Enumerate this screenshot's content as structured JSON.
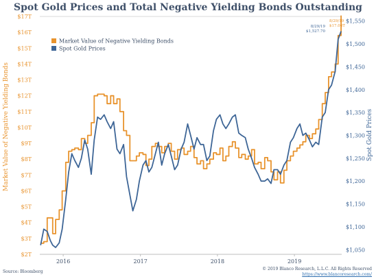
{
  "header": {
    "title": "Spot Gold Prices and Total Negative Yielding Bonds Outstanding"
  },
  "footer": {
    "source": "Source: Bloomberg",
    "copyright": "© 2019 Blanco Research, L.L.C. All Rights Reserved",
    "website": "https://www.blancoresearch.com/"
  },
  "colors": {
    "bonds": "#e8932d",
    "gold": "#3d6596",
    "title": "#3f5069"
  },
  "chart_data": {
    "type": "line",
    "title": "Spot Gold Prices and Total Negative Yielding Bonds Outstanding",
    "legend_position": "top-left",
    "grid": false,
    "x_ticks": [
      "2016",
      "2017",
      "2018",
      "2019"
    ],
    "x_range": [
      "2015-10-01",
      "2019-09-01"
    ],
    "y_left": {
      "label": "Market Value of Negative Yielding Bonds",
      "ticks": [
        "$2T",
        "$3T",
        "$4T",
        "$5T",
        "$6T",
        "$7T",
        "$8T",
        "$9T",
        "$10T",
        "$11T",
        "$12T",
        "$13T",
        "$14T",
        "$15T",
        "$16T",
        "$17T"
      ],
      "range": [
        2,
        17
      ]
    },
    "y_right": {
      "label": "Spot Gold Prices",
      "ticks": [
        "$1,050",
        "$1,100",
        "$1,150",
        "$1,200",
        "$1,250",
        "$1,300",
        "$1,350",
        "$1,400",
        "$1,450",
        "$1,500",
        "$1,550"
      ],
      "range": [
        1040,
        1560
      ]
    },
    "annotations": [
      {
        "text": "8/29/19",
        "series": "bonds"
      },
      {
        "text": "$17.06T",
        "series": "bonds"
      },
      {
        "text": "8/29/19",
        "series": "gold"
      },
      {
        "text": "$1,527.70",
        "series": "gold"
      }
    ],
    "series": [
      {
        "name": "Market Value of Negative Yielding Bonds",
        "axis": "left",
        "x": [
          "2015-10-05",
          "2015-10-20",
          "2015-11-05",
          "2015-11-20",
          "2015-12-01",
          "2015-12-15",
          "2016-01-01",
          "2016-01-15",
          "2016-02-01",
          "2016-02-15",
          "2016-03-01",
          "2016-03-15",
          "2016-04-01",
          "2016-04-15",
          "2016-05-01",
          "2016-05-15",
          "2016-06-01",
          "2016-06-15",
          "2016-07-01",
          "2016-07-15",
          "2016-08-01",
          "2016-08-15",
          "2016-09-01",
          "2016-09-15",
          "2016-10-01",
          "2016-10-15",
          "2016-11-01",
          "2016-11-15",
          "2016-12-01",
          "2016-12-15",
          "2017-01-01",
          "2017-01-15",
          "2017-02-01",
          "2017-02-15",
          "2017-03-01",
          "2017-03-15",
          "2017-04-01",
          "2017-04-15",
          "2017-05-01",
          "2017-05-15",
          "2017-06-01",
          "2017-06-15",
          "2017-07-01",
          "2017-07-15",
          "2017-08-01",
          "2017-08-15",
          "2017-09-01",
          "2017-09-15",
          "2017-10-01",
          "2017-10-15",
          "2017-11-01",
          "2017-11-15",
          "2017-12-01",
          "2017-12-15",
          "2018-01-01",
          "2018-01-15",
          "2018-02-01",
          "2018-02-15",
          "2018-03-01",
          "2018-03-15",
          "2018-04-01",
          "2018-04-15",
          "2018-05-01",
          "2018-05-15",
          "2018-06-01",
          "2018-06-15",
          "2018-07-01",
          "2018-07-15",
          "2018-08-01",
          "2018-08-15",
          "2018-09-01",
          "2018-09-15",
          "2018-10-01",
          "2018-10-15",
          "2018-11-01",
          "2018-11-15",
          "2018-12-01",
          "2018-12-15",
          "2019-01-01",
          "2019-01-15",
          "2019-02-01",
          "2019-02-15",
          "2019-03-01",
          "2019-03-15",
          "2019-04-01",
          "2019-04-15",
          "2019-05-01",
          "2019-05-15",
          "2019-06-01",
          "2019-06-15",
          "2019-07-01",
          "2019-07-15",
          "2019-08-01",
          "2019-08-15",
          "2019-08-29"
        ],
        "values": [
          2.7,
          2.8,
          4.3,
          4.3,
          3.3,
          4.2,
          4.8,
          6.0,
          7.8,
          8.5,
          8.6,
          8.7,
          8.6,
          9.3,
          9.0,
          9.5,
          10.3,
          12.0,
          12.1,
          12.1,
          12.0,
          11.5,
          12.0,
          11.5,
          11.8,
          11.0,
          9.8,
          9.5,
          7.9,
          7.9,
          8.2,
          8.4,
          8.3,
          7.6,
          8.0,
          8.8,
          9.0,
          8.8,
          8.4,
          8.8,
          9.0,
          8.5,
          8.0,
          8.6,
          8.7,
          8.3,
          8.5,
          8.8,
          8.1,
          7.7,
          7.9,
          7.4,
          7.7,
          8.0,
          8.4,
          8.3,
          8.7,
          7.9,
          8.2,
          8.8,
          9.1,
          8.7,
          8.1,
          8.3,
          8.0,
          8.2,
          8.6,
          7.7,
          7.8,
          7.4,
          8.1,
          7.9,
          7.2,
          6.7,
          7.2,
          6.5,
          7.3,
          7.9,
          8.2,
          8.5,
          8.7,
          8.9,
          9.1,
          9.5,
          9.3,
          9.6,
          9.9,
          10.5,
          11.5,
          12.2,
          13.2,
          13.5,
          14.0,
          15.8,
          17.06
        ]
      },
      {
        "name": "Spot Gold Prices",
        "axis": "right",
        "x": [
          "2015-10-05",
          "2015-10-20",
          "2015-11-05",
          "2015-11-20",
          "2015-12-01",
          "2015-12-15",
          "2016-01-01",
          "2016-01-15",
          "2016-02-01",
          "2016-02-15",
          "2016-03-01",
          "2016-03-15",
          "2016-04-01",
          "2016-04-15",
          "2016-05-01",
          "2016-05-15",
          "2016-06-01",
          "2016-06-15",
          "2016-07-01",
          "2016-07-15",
          "2016-08-01",
          "2016-08-15",
          "2016-09-01",
          "2016-09-15",
          "2016-10-01",
          "2016-10-15",
          "2016-11-01",
          "2016-11-15",
          "2016-12-01",
          "2016-12-15",
          "2017-01-01",
          "2017-01-15",
          "2017-02-01",
          "2017-02-15",
          "2017-03-01",
          "2017-03-15",
          "2017-04-01",
          "2017-04-15",
          "2017-05-01",
          "2017-05-15",
          "2017-06-01",
          "2017-06-15",
          "2017-07-01",
          "2017-07-15",
          "2017-08-01",
          "2017-08-15",
          "2017-09-01",
          "2017-09-15",
          "2017-10-01",
          "2017-10-15",
          "2017-11-01",
          "2017-11-15",
          "2017-12-01",
          "2017-12-15",
          "2018-01-01",
          "2018-01-15",
          "2018-02-01",
          "2018-02-15",
          "2018-03-01",
          "2018-03-15",
          "2018-04-01",
          "2018-04-15",
          "2018-05-01",
          "2018-05-15",
          "2018-06-01",
          "2018-06-15",
          "2018-07-01",
          "2018-07-15",
          "2018-08-01",
          "2018-08-15",
          "2018-09-01",
          "2018-09-15",
          "2018-10-01",
          "2018-10-15",
          "2018-11-01",
          "2018-11-15",
          "2018-12-01",
          "2018-12-15",
          "2019-01-01",
          "2019-01-15",
          "2019-02-01",
          "2019-02-15",
          "2019-03-01",
          "2019-03-15",
          "2019-04-01",
          "2019-04-15",
          "2019-05-01",
          "2019-05-15",
          "2019-06-01",
          "2019-06-15",
          "2019-07-01",
          "2019-07-15",
          "2019-08-01",
          "2019-08-15",
          "2019-08-29"
        ],
        "values": [
          1060,
          1095,
          1090,
          1070,
          1060,
          1055,
          1065,
          1095,
          1160,
          1220,
          1260,
          1245,
          1230,
          1250,
          1290,
          1270,
          1215,
          1290,
          1340,
          1335,
          1345,
          1330,
          1315,
          1330,
          1270,
          1260,
          1280,
          1210,
          1170,
          1135,
          1160,
          1200,
          1235,
          1245,
          1220,
          1230,
          1260,
          1285,
          1235,
          1260,
          1280,
          1255,
          1225,
          1235,
          1270,
          1285,
          1325,
          1300,
          1270,
          1295,
          1280,
          1280,
          1245,
          1255,
          1310,
          1335,
          1345,
          1325,
          1315,
          1325,
          1340,
          1345,
          1305,
          1300,
          1295,
          1270,
          1250,
          1230,
          1215,
          1200,
          1200,
          1205,
          1195,
          1225,
          1225,
          1215,
          1235,
          1245,
          1285,
          1295,
          1315,
          1325,
          1300,
          1305,
          1290,
          1275,
          1285,
          1280,
          1340,
          1350,
          1400,
          1410,
          1440,
          1510,
          1527.7
        ]
      }
    ]
  }
}
